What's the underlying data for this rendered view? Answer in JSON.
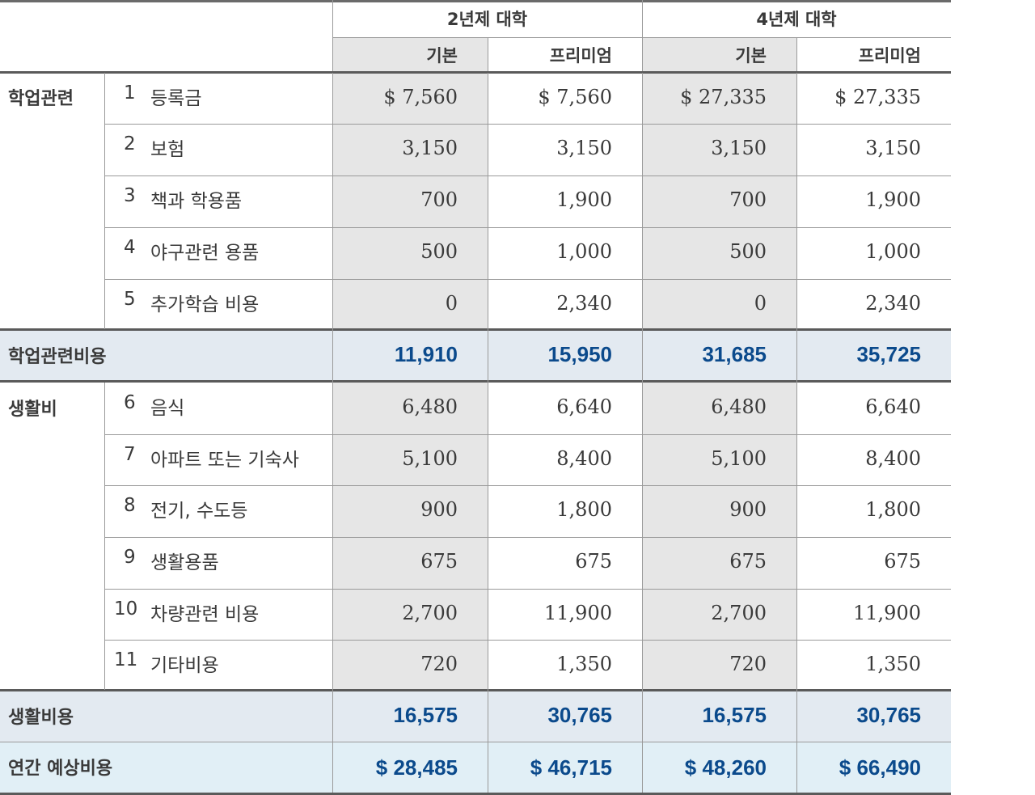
{
  "header": {
    "group_2yr": "2년제 대학",
    "group_4yr": "4년제 대학",
    "sub_basic": "기본",
    "sub_premium": "프리미엄"
  },
  "categories": {
    "academic": "학업관련",
    "living": "생활비"
  },
  "rows": [
    {
      "no": "1",
      "label": "등록금",
      "v": [
        "$ 7,560",
        "$ 7,560",
        "$ 27,335",
        "$ 27,335"
      ]
    },
    {
      "no": "2",
      "label": "보험",
      "v": [
        "3,150",
        "3,150",
        "3,150",
        "3,150"
      ]
    },
    {
      "no": "3",
      "label": "책과 학용품",
      "v": [
        "700",
        "1,900",
        "700",
        "1,900"
      ]
    },
    {
      "no": "4",
      "label": "야구관련 용품",
      "v": [
        "500",
        "1,000",
        "500",
        "1,000"
      ]
    },
    {
      "no": "5",
      "label": "추가학습 비용",
      "v": [
        "0",
        "2,340",
        "0",
        "2,340"
      ]
    },
    {
      "no": "6",
      "label": "음식",
      "v": [
        "6,480",
        "6,640",
        "6,480",
        "6,640"
      ]
    },
    {
      "no": "7",
      "label": "아파트 또는 기숙사",
      "v": [
        "5,100",
        "8,400",
        "5,100",
        "8,400"
      ]
    },
    {
      "no": "8",
      "label": "전기, 수도등",
      "v": [
        "900",
        "1,800",
        "900",
        "1,800"
      ]
    },
    {
      "no": "9",
      "label": "생활용품",
      "v": [
        "675",
        "675",
        "675",
        "675"
      ]
    },
    {
      "no": "10",
      "label": "차량관련 비용",
      "v": [
        "2,700",
        "11,900",
        "2,700",
        "11,900"
      ]
    },
    {
      "no": "11",
      "label": "기타비용",
      "v": [
        "720",
        "1,350",
        "720",
        "1,350"
      ]
    }
  ],
  "subtotals": [
    {
      "label": "학업관련비용",
      "v": [
        "11,910",
        "15,950",
        "31,685",
        "35,725"
      ]
    },
    {
      "label": "생활비용",
      "v": [
        "16,575",
        "30,765",
        "16,575",
        "30,765"
      ]
    }
  ],
  "total": {
    "label": "연간 예상비용",
    "v": [
      "$ 28,485",
      "$ 46,715",
      "$ 48,260",
      "$ 66,490"
    ]
  },
  "colors": {
    "basic_col_bg": "#e6e6e6",
    "subtotal_bg": "#e3eaf1",
    "total_bg": "#e1eff6",
    "sum_text": "#0b4a8c"
  }
}
